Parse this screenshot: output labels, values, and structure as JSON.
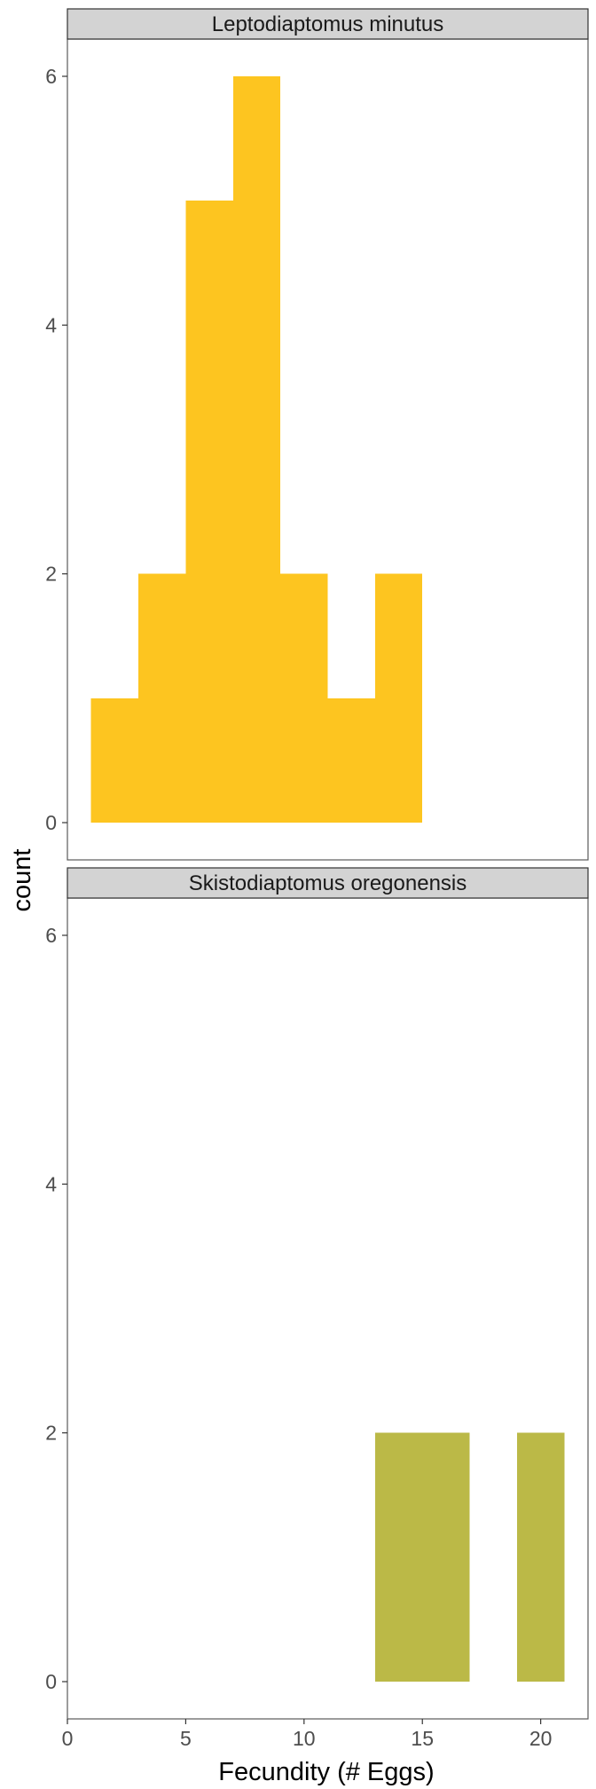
{
  "chart_data": {
    "type": "bar",
    "subtype": "faceted-histogram",
    "xlabel": "Fecundity (# Eggs)",
    "ylabel": "count",
    "xlim": [
      0,
      22
    ],
    "ylim": [
      0,
      6.3
    ],
    "x_ticks": [
      0,
      5,
      10,
      15,
      20
    ],
    "y_ticks": [
      0,
      2,
      4,
      6
    ],
    "grid": false,
    "facets": [
      {
        "title": "Leptodiaptomus minutus",
        "color": "#FDC520",
        "bins": [
          {
            "x0": 1,
            "x1": 3,
            "count": 1
          },
          {
            "x0": 3,
            "x1": 5,
            "count": 2
          },
          {
            "x0": 5,
            "x1": 7,
            "count": 5
          },
          {
            "x0": 7,
            "x1": 9,
            "count": 6
          },
          {
            "x0": 9,
            "x1": 11,
            "count": 2
          },
          {
            "x0": 11,
            "x1": 13,
            "count": 1
          },
          {
            "x0": 13,
            "x1": 15,
            "count": 2
          }
        ]
      },
      {
        "title": "Skistodiaptomus oregonensis",
        "color": "#BBB947",
        "bins": [
          {
            "x0": 13,
            "x1": 15,
            "count": 2
          },
          {
            "x0": 15,
            "x1": 17,
            "count": 2
          },
          {
            "x0": 19,
            "x1": 21,
            "count": 2
          }
        ]
      }
    ]
  }
}
